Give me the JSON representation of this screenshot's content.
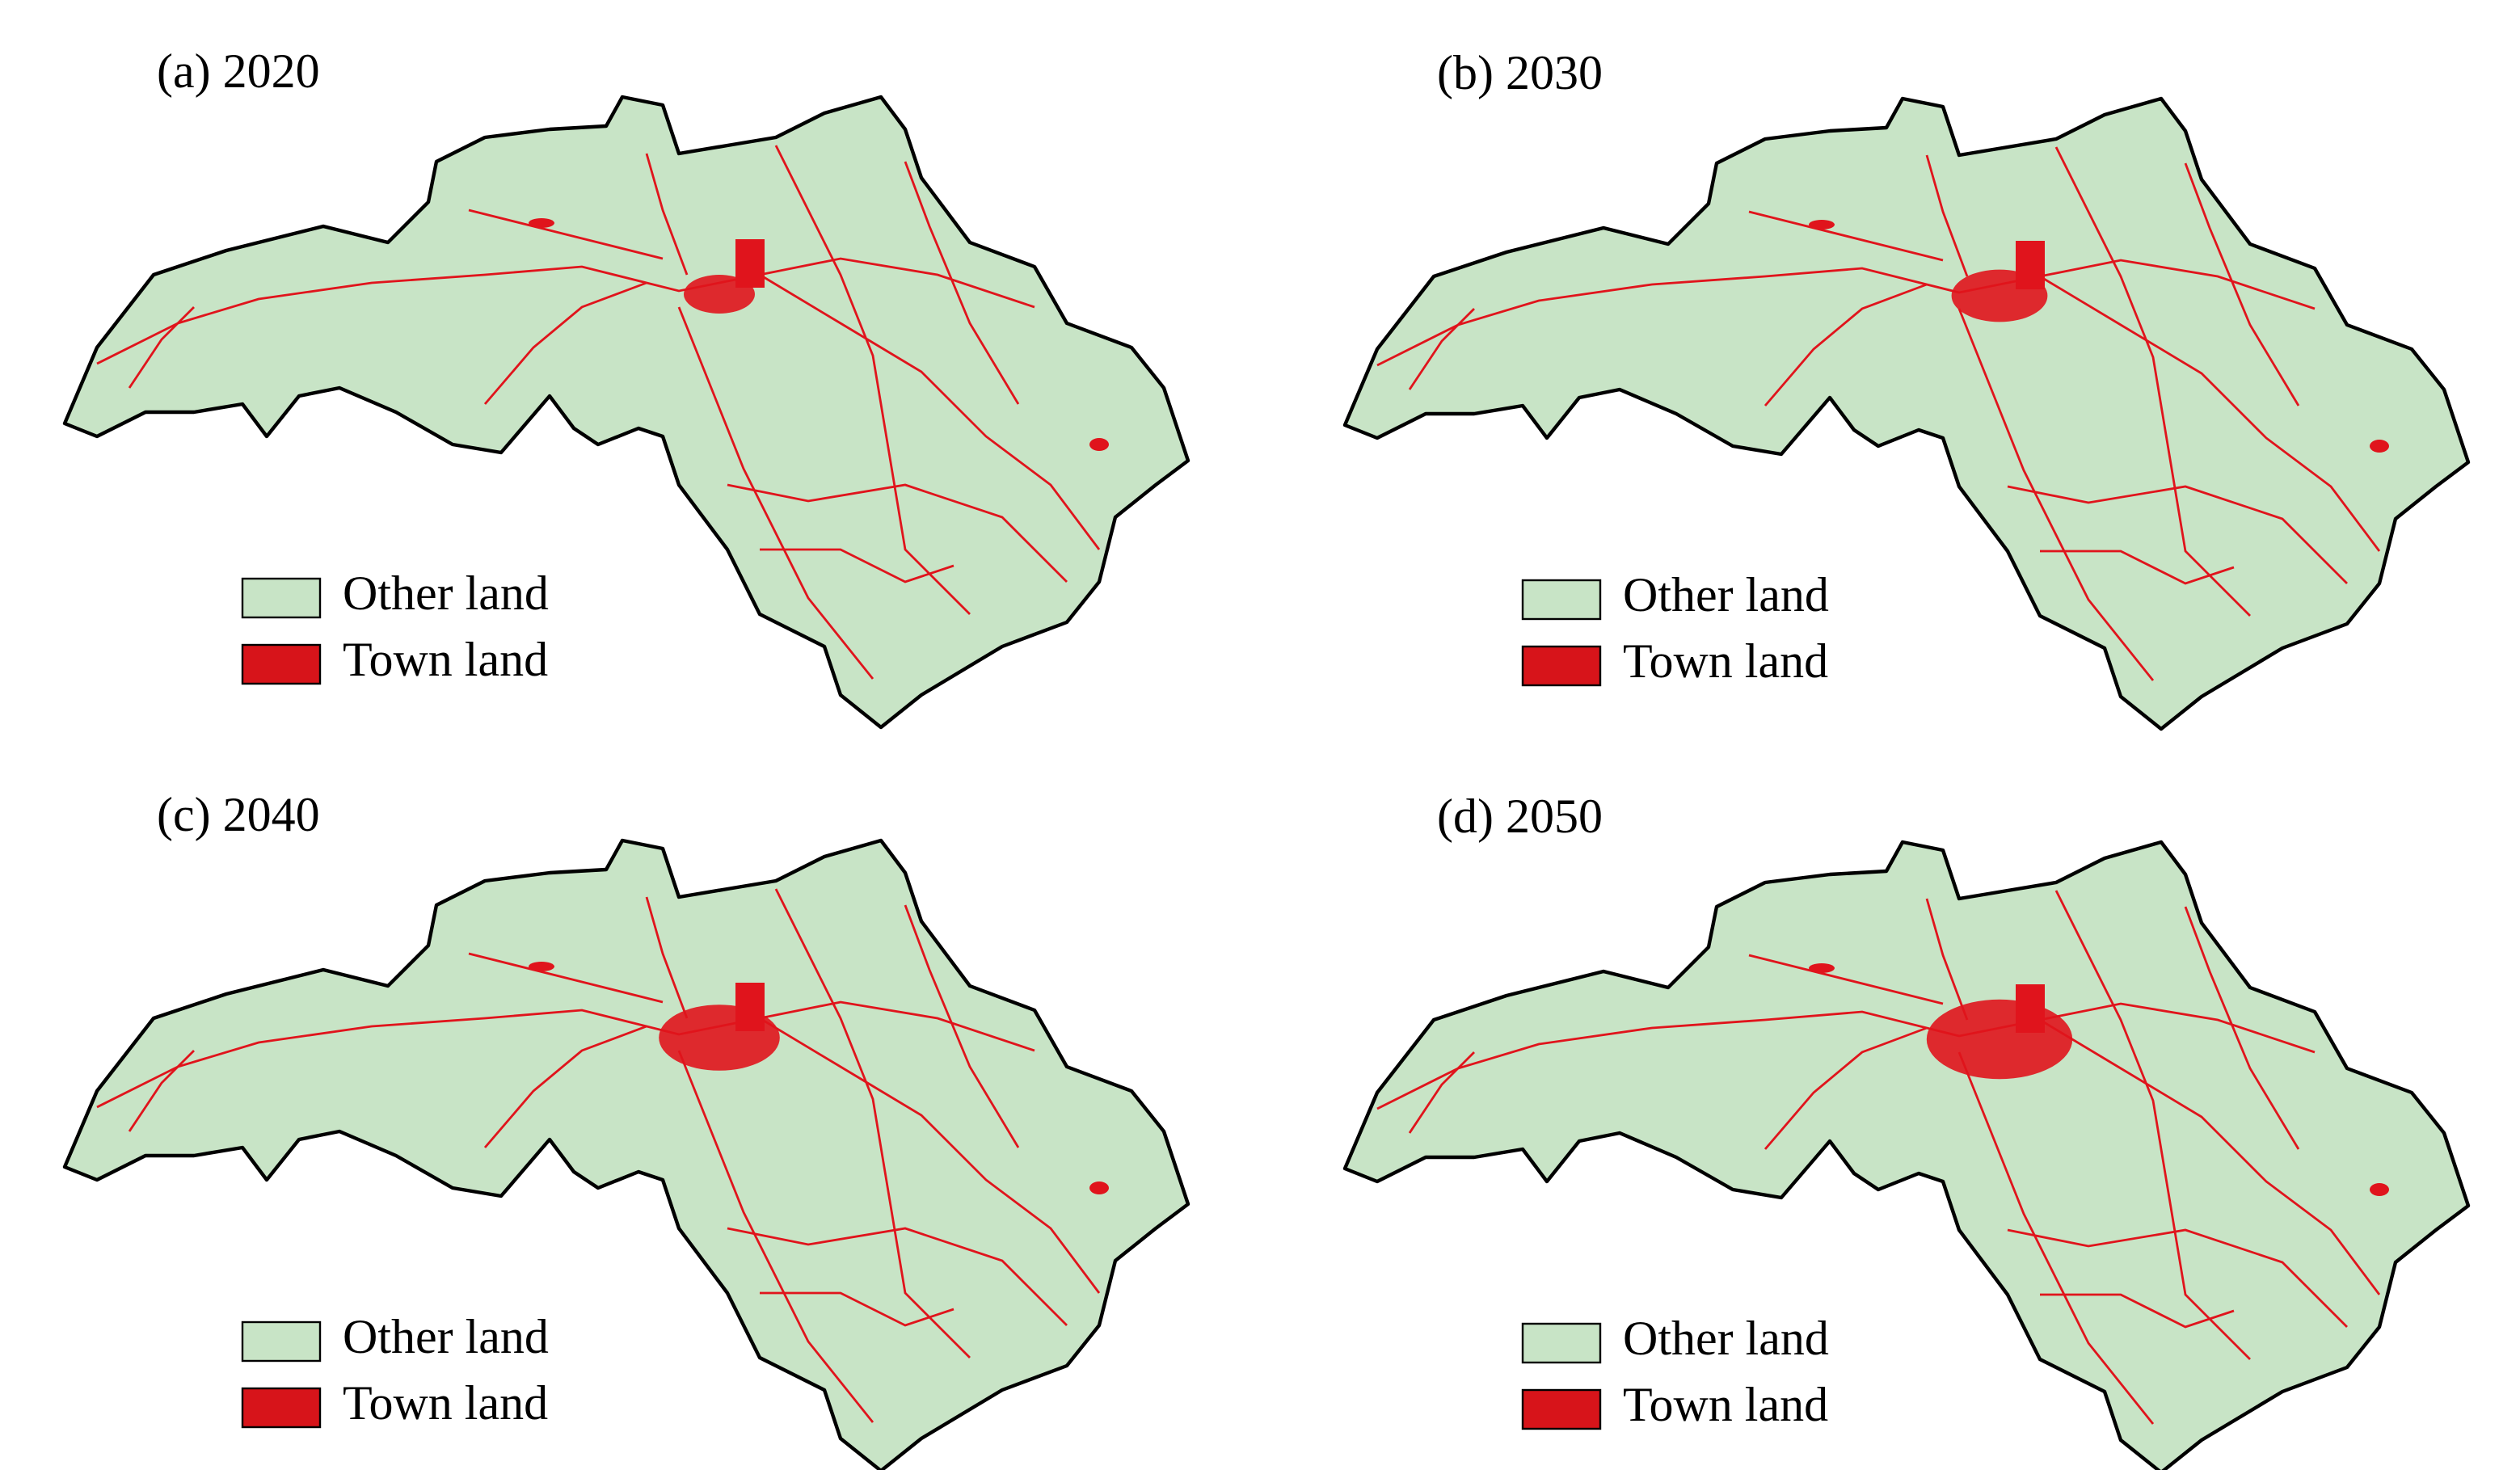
{
  "panels": [
    {
      "title": "(a) 2020",
      "legend": [
        "Other land",
        "Town land"
      ]
    },
    {
      "title": "(b) 2030",
      "legend": [
        "Other land",
        "Town land"
      ]
    },
    {
      "title": "(c) 2040",
      "legend": [
        "Other land",
        "Town land"
      ]
    },
    {
      "title": "(d) 2050",
      "legend": [
        "Other land",
        "Town land"
      ]
    }
  ]
}
